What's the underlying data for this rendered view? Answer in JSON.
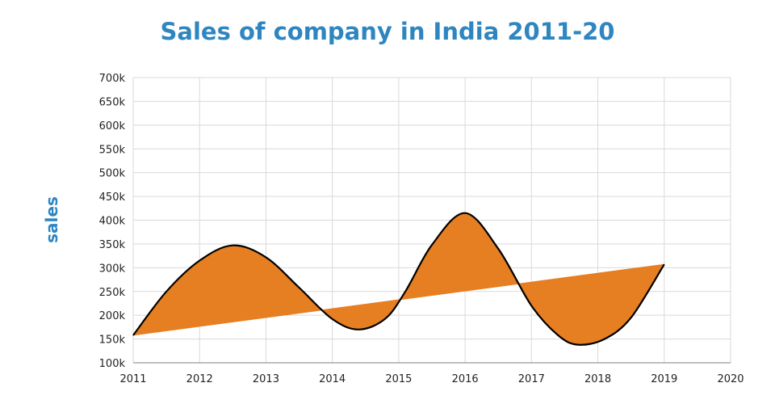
{
  "chart_data": {
    "type": "line",
    "title": "Sales of company in India 2011-20",
    "ylabel": "sales",
    "xlabel": "",
    "xlim": [
      2011,
      2020
    ],
    "ylim": [
      100,
      700
    ],
    "x_ticks": [
      {
        "value": 2011,
        "label": "2011"
      },
      {
        "value": 2012,
        "label": "2012"
      },
      {
        "value": 2013,
        "label": "2013"
      },
      {
        "value": 2014,
        "label": "2014"
      },
      {
        "value": 2015,
        "label": "2015"
      },
      {
        "value": 2016,
        "label": "2016"
      },
      {
        "value": 2017,
        "label": "2017"
      },
      {
        "value": 2018,
        "label": "2018"
      },
      {
        "value": 2019,
        "label": "2019"
      },
      {
        "value": 2020,
        "label": "2020"
      }
    ],
    "y_ticks": [
      {
        "value": 100,
        "label": "100k"
      },
      {
        "value": 150,
        "label": "150k"
      },
      {
        "value": 200,
        "label": "200k"
      },
      {
        "value": 250,
        "label": "250k"
      },
      {
        "value": 300,
        "label": "300k"
      },
      {
        "value": 350,
        "label": "350k"
      },
      {
        "value": 400,
        "label": "400k"
      },
      {
        "value": 450,
        "label": "450k"
      },
      {
        "value": 500,
        "label": "500k"
      },
      {
        "value": 550,
        "label": "550k"
      },
      {
        "value": 600,
        "label": "600k"
      },
      {
        "value": 650,
        "label": "650k"
      },
      {
        "value": 700,
        "label": "700k"
      }
    ],
    "grid": true,
    "legend": "none",
    "series": [
      {
        "values": [
          {
            "x": 2011.0,
            "y": 158
          },
          {
            "x": 2011.5,
            "y": 250
          },
          {
            "x": 2012.0,
            "y": 315
          },
          {
            "x": 2012.5,
            "y": 347
          },
          {
            "x": 2013.0,
            "y": 322
          },
          {
            "x": 2013.5,
            "y": 258
          },
          {
            "x": 2014.0,
            "y": 192
          },
          {
            "x": 2014.4,
            "y": 170
          },
          {
            "x": 2014.8,
            "y": 193
          },
          {
            "x": 2015.1,
            "y": 250
          },
          {
            "x": 2015.5,
            "y": 348
          },
          {
            "x": 2016.0,
            "y": 415
          },
          {
            "x": 2016.5,
            "y": 340
          },
          {
            "x": 2017.0,
            "y": 220
          },
          {
            "x": 2017.4,
            "y": 158
          },
          {
            "x": 2017.7,
            "y": 138
          },
          {
            "x": 2018.1,
            "y": 150
          },
          {
            "x": 2018.5,
            "y": 195
          },
          {
            "x": 2019.0,
            "y": 307
          }
        ]
      }
    ],
    "trend_line": {
      "start": {
        "x": 2011.0,
        "y": 158
      },
      "end": {
        "x": 2019.0,
        "y": 307
      }
    },
    "colors": {
      "fill": "#e67e22",
      "line": "#000000",
      "title": "#2e86c1",
      "grid": "#d9d9d9"
    }
  }
}
